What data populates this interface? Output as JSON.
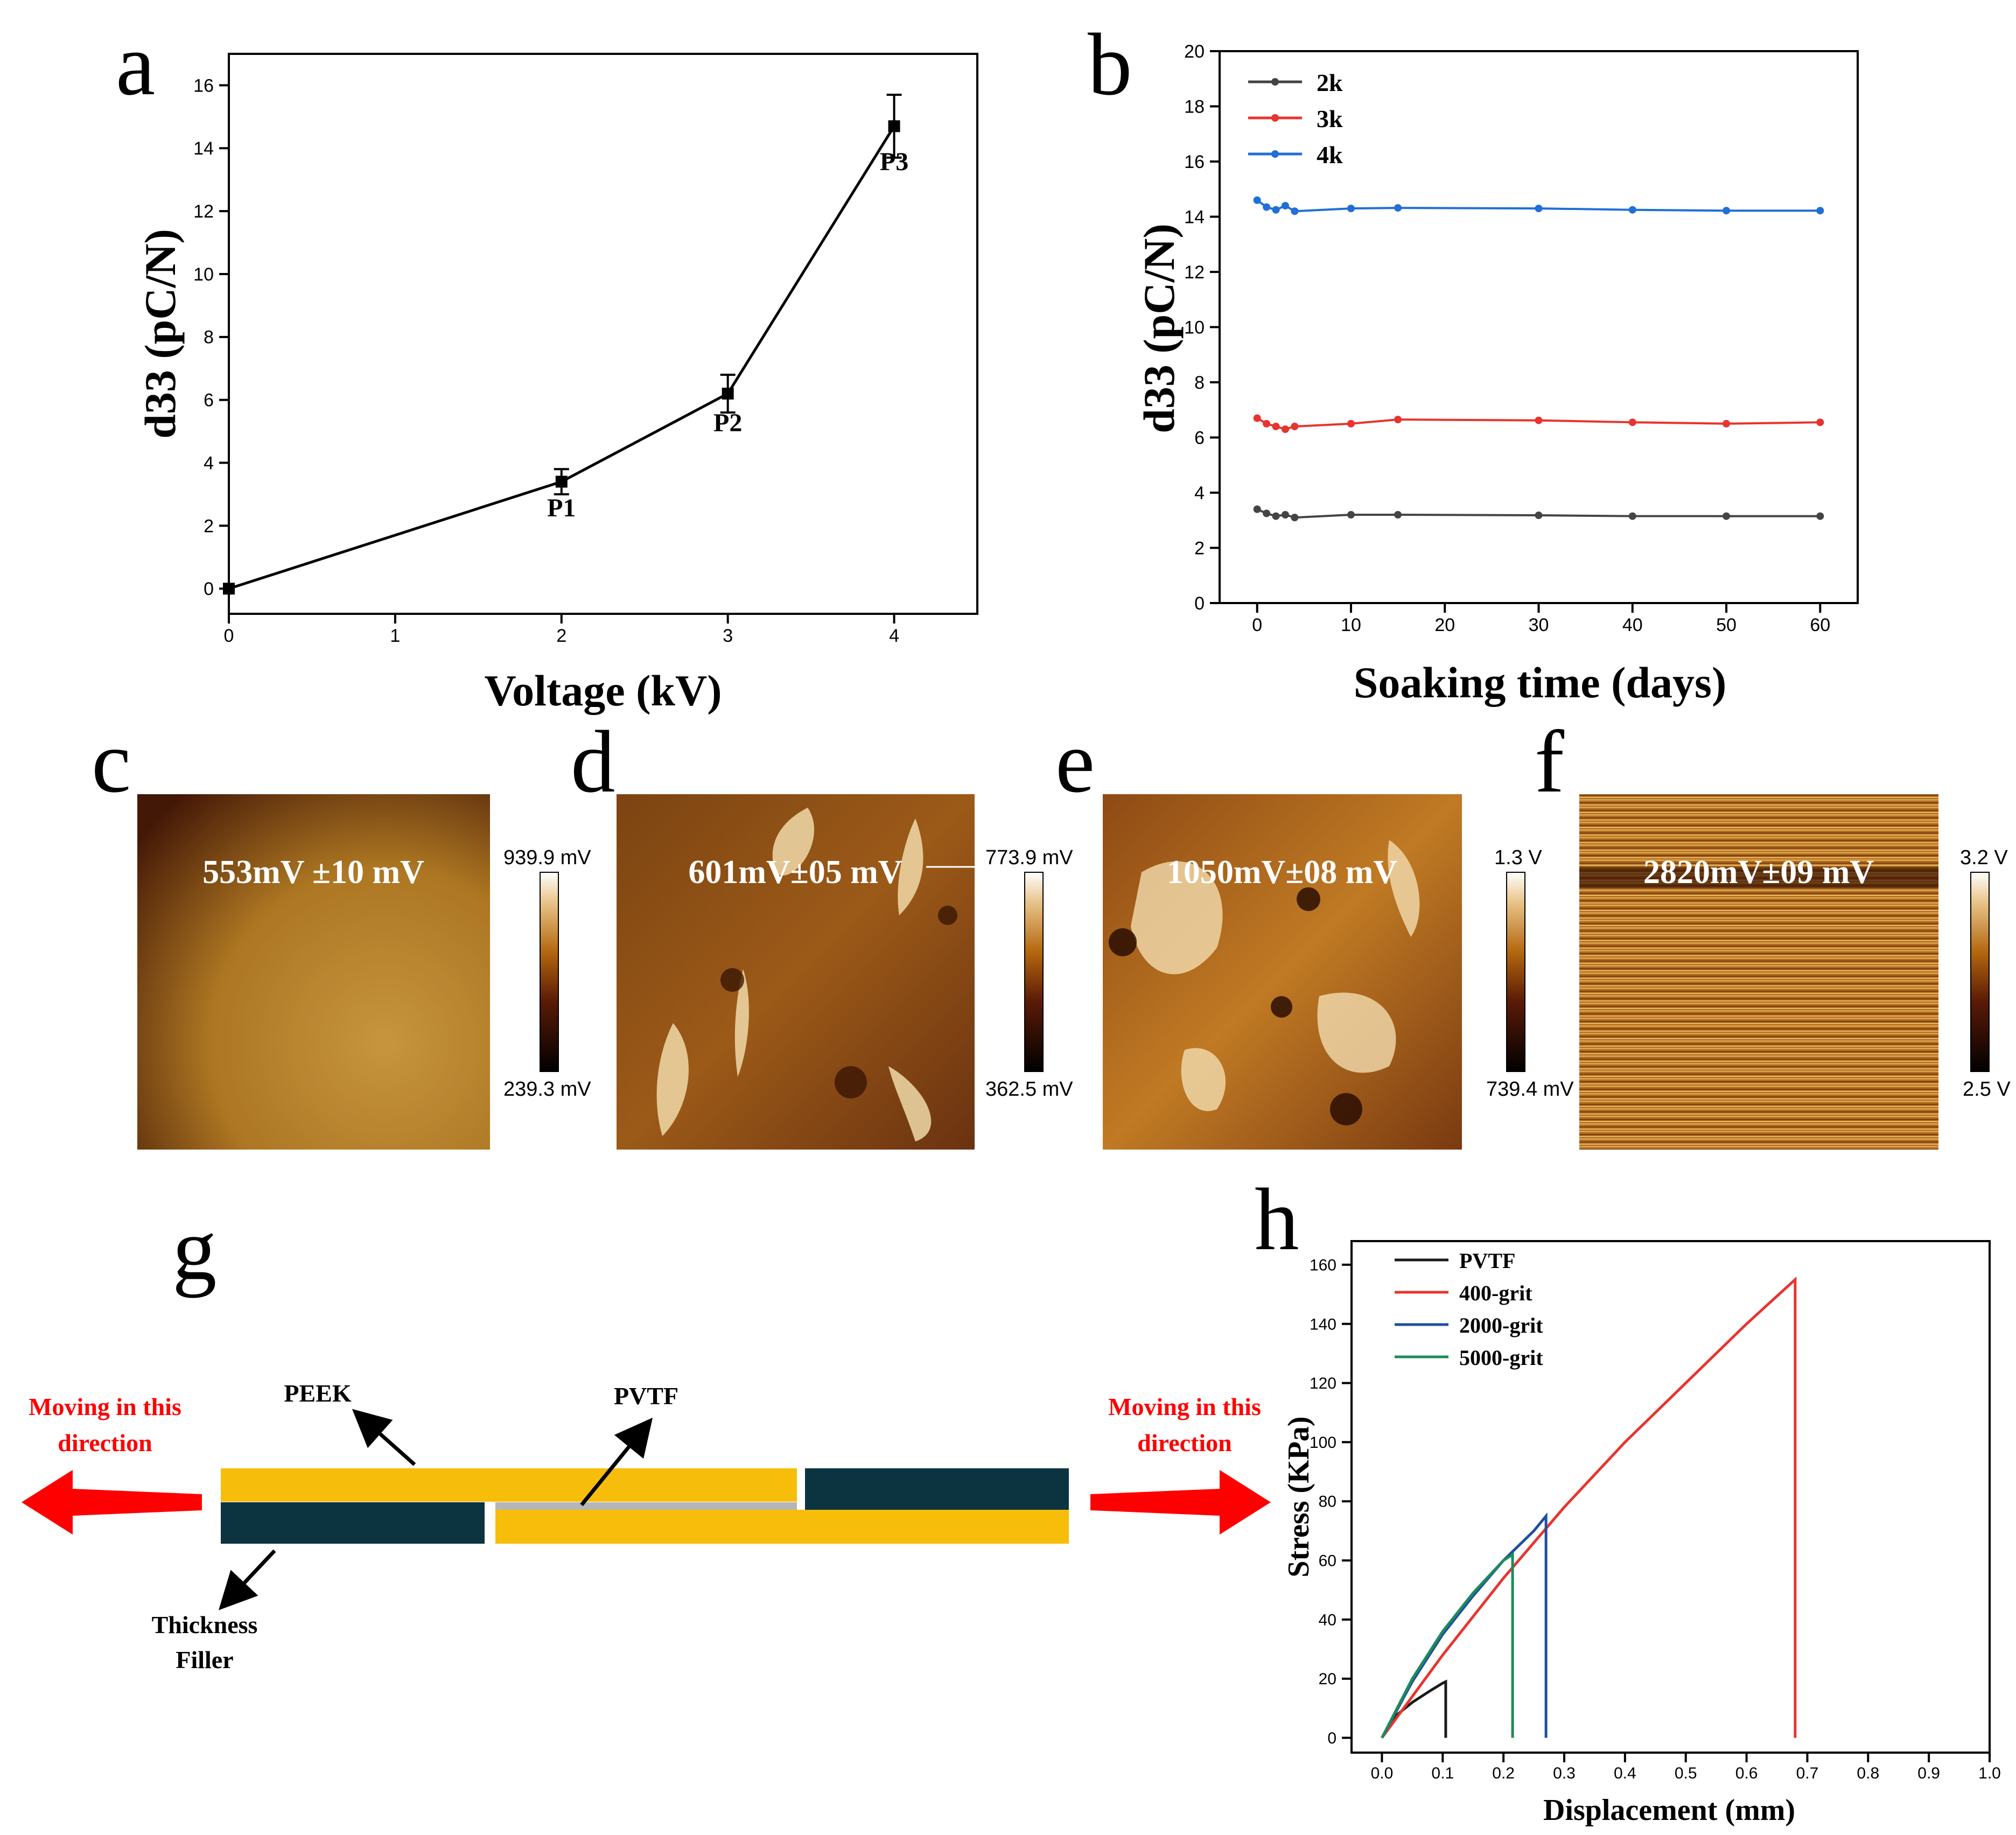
{
  "panel_letters": {
    "a": "a",
    "b": "b",
    "c": "c",
    "d": "d",
    "e": "e",
    "f": "f",
    "g": "g",
    "h": "h"
  },
  "colors": {
    "black": "#1a1a1a",
    "red": "#e8342f",
    "blue": "#1f6fd6",
    "gray": "#444444",
    "teal": "#1e8a5a",
    "navy_h": "#1f4e9e",
    "peek": "#f7bd0b",
    "filler": "#0c3340",
    "pvtf": "#b6b6b6",
    "arrow": "#ff0000"
  },
  "chart_data": [
    {
      "id": "a",
      "type": "line",
      "title": "",
      "xlabel": "Voltage (kV)",
      "ylabel": "d33 (pC/N)",
      "xlim": [
        0,
        4.5
      ],
      "ylim": [
        -0.8,
        17
      ],
      "xticks": [
        0,
        1,
        2,
        3,
        4
      ],
      "yticks": [
        0,
        2,
        4,
        6,
        8,
        10,
        12,
        14,
        16
      ],
      "series": [
        {
          "name": "d33",
          "x": [
            0,
            2,
            3,
            4
          ],
          "y": [
            0,
            3.4,
            6.2,
            14.7
          ],
          "err": [
            0,
            0.4,
            0.6,
            1.0
          ]
        }
      ],
      "annotations": [
        {
          "text": "P1",
          "x": 2,
          "y": 2.3
        },
        {
          "text": "P2",
          "x": 3,
          "y": 5.0
        },
        {
          "text": "P3",
          "x": 4,
          "y": 13.3
        }
      ]
    },
    {
      "id": "b",
      "type": "line",
      "title": "",
      "xlabel": "Soaking time (days)",
      "ylabel": "d33 (pC/N)",
      "xlim": [
        -4,
        64
      ],
      "ylim": [
        0,
        20
      ],
      "xticks": [
        0,
        10,
        20,
        30,
        40,
        50,
        60
      ],
      "yticks": [
        0,
        2,
        4,
        6,
        8,
        10,
        12,
        14,
        16,
        18,
        20
      ],
      "legend": "top-left",
      "series": [
        {
          "name": "2k",
          "x": [
            0,
            1,
            2,
            3,
            4,
            10,
            15,
            30,
            40,
            50,
            60
          ],
          "y": [
            3.4,
            3.25,
            3.15,
            3.2,
            3.1,
            3.2,
            3.2,
            3.18,
            3.15,
            3.15,
            3.15
          ]
        },
        {
          "name": "3k",
          "x": [
            0,
            1,
            2,
            3,
            4,
            10,
            15,
            30,
            40,
            50,
            60
          ],
          "y": [
            6.7,
            6.5,
            6.4,
            6.3,
            6.4,
            6.5,
            6.65,
            6.62,
            6.55,
            6.5,
            6.55
          ]
        },
        {
          "name": "4k",
          "x": [
            0,
            1,
            2,
            3,
            4,
            10,
            15,
            30,
            40,
            50,
            60
          ],
          "y": [
            14.6,
            14.35,
            14.25,
            14.4,
            14.2,
            14.3,
            14.32,
            14.3,
            14.25,
            14.22,
            14.22
          ]
        }
      ]
    },
    {
      "id": "h",
      "type": "line",
      "title": "",
      "xlabel": "Displacement (mm)",
      "ylabel": "Stress (KPa)",
      "xlim": [
        -0.05,
        1.0
      ],
      "ylim": [
        -5,
        168
      ],
      "xticks": [
        0.0,
        0.1,
        0.2,
        0.3,
        0.4,
        0.5,
        0.6,
        0.7,
        0.8,
        0.9,
        1.0
      ],
      "xtick_labels": [
        "0.0",
        "0.1",
        "0.2",
        "0.3",
        "0.4",
        "0.5",
        "0.6",
        "0.7",
        "0.8",
        "0.9",
        "1.0"
      ],
      "yticks": [
        0,
        20,
        40,
        60,
        80,
        100,
        120,
        140,
        160
      ],
      "legend": "top-left",
      "series": [
        {
          "name": "PVTF",
          "x": [
            0,
            0.02,
            0.05,
            0.08,
            0.1,
            0.105,
            0.105
          ],
          "y": [
            0,
            7,
            12,
            16,
            18.5,
            19,
            0
          ]
        },
        {
          "name": "400-grit",
          "x": [
            0,
            0.1,
            0.2,
            0.3,
            0.4,
            0.5,
            0.6,
            0.68,
            0.68
          ],
          "y": [
            0,
            28,
            54,
            78,
            100,
            120,
            140,
            155,
            0
          ]
        },
        {
          "name": "2000-grit",
          "x": [
            0,
            0.05,
            0.1,
            0.15,
            0.2,
            0.25,
            0.27,
            0.27
          ],
          "y": [
            0,
            19,
            35,
            48,
            60,
            70,
            75,
            0
          ]
        },
        {
          "name": "5000-grit",
          "x": [
            0,
            0.05,
            0.1,
            0.15,
            0.2,
            0.215,
            0.215
          ],
          "y": [
            0,
            20,
            36,
            49,
            60,
            62,
            0
          ]
        }
      ]
    }
  ],
  "kpfm": [
    {
      "id": "c",
      "label": "553mV ±10 mV",
      "scale_max": "939.9 mV",
      "scale_min": "239.3 mV"
    },
    {
      "id": "d",
      "label": "601mV±05 mV",
      "scale_max": "773.9 mV",
      "scale_min": "362.5 mV"
    },
    {
      "id": "e",
      "label": "1050mV±08 mV",
      "scale_max": "1.3 V",
      "scale_min": "739.4 mV"
    },
    {
      "id": "f",
      "label": "2820mV±09 mV",
      "scale_max": "3.2 V",
      "scale_min": "2.5 V"
    }
  ],
  "schematic": {
    "left_text_1": "Moving in this",
    "left_text_2": "direction",
    "right_text_1": "Moving in this",
    "right_text_2": "direction",
    "peek_label": "PEEK",
    "pvtf_label": "PVTF",
    "filler_label_1": "Thickness",
    "filler_label_2": "Filler"
  }
}
